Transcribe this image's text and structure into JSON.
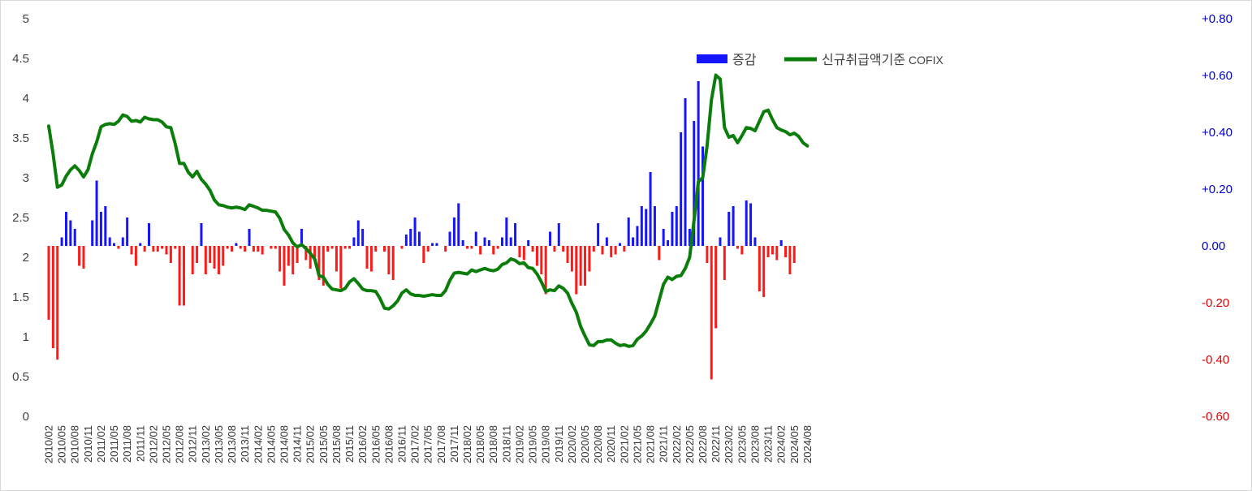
{
  "chart_data": {
    "type": "bar+line",
    "title": "",
    "colors": {
      "bar_pos": "#1515ff",
      "bar_neg": "#ff1a1a",
      "line": "#0a7d0a",
      "right_pos_tick": "#0000cc",
      "right_neg_tick": "#e00000",
      "left_tick": "#404040"
    },
    "left_axis": {
      "ylim": [
        0,
        5
      ],
      "ticks": [
        "0",
        "0.5",
        "1",
        "1.5",
        "2",
        "2.5",
        "3",
        "3.5",
        "4",
        "4.5",
        "5"
      ]
    },
    "right_axis": {
      "ylim": [
        -0.6,
        0.8
      ],
      "ticks": [
        "-0.60",
        "-0.40",
        "-0.20",
        "0.00",
        "+0.20",
        "+0.40",
        "+0.60",
        "+0.80"
      ]
    },
    "legend": {
      "bar_label": "증감",
      "line_label_kr": "신규취급액기준",
      "line_label_en": "COFIX"
    },
    "x_start": "2010/02",
    "x_labels": [
      "2010/02",
      "2010/05",
      "2010/08",
      "2010/11",
      "2011/02",
      "2011/05",
      "2011/08",
      "2011/11",
      "2012/02",
      "2012/05",
      "2012/08",
      "2012/11",
      "2013/02",
      "2013/05",
      "2013/08",
      "2013/11",
      "2014/02",
      "2014/05",
      "2014/08",
      "2014/11",
      "2015/02",
      "2015/05",
      "2015/08",
      "2015/11",
      "2016/02",
      "2016/05",
      "2016/08",
      "2016/11",
      "2017/02",
      "2017/05",
      "2017/08",
      "2017/11",
      "2018/02",
      "2018/05",
      "2018/08",
      "2018/11",
      "2019/02",
      "2019/05",
      "2019/08",
      "2019/11",
      "2020/02",
      "2020/05",
      "2020/08",
      "2020/11",
      "2021/02",
      "2021/05",
      "2021/08",
      "2021/11",
      "2022/02",
      "2022/05",
      "2022/08",
      "2022/11",
      "2023/02",
      "2023/05",
      "2023/08",
      "2023/11",
      "2024/02",
      "2024/05",
      "2024/08"
    ],
    "series": [
      {
        "name": "신규취급액기준 COFIX",
        "axis": "left",
        "type": "line",
        "values": [
          3.65,
          3.3,
          2.88,
          2.91,
          3.02,
          3.1,
          3.15,
          3.09,
          3.01,
          3.1,
          3.3,
          3.45,
          3.64,
          3.67,
          3.68,
          3.67,
          3.71,
          3.79,
          3.77,
          3.71,
          3.72,
          3.7,
          3.76,
          3.74,
          3.73,
          3.73,
          3.7,
          3.64,
          3.63,
          3.43,
          3.18,
          3.18,
          3.07,
          3.01,
          3.08,
          2.98,
          2.92,
          2.84,
          2.72,
          2.66,
          2.65,
          2.63,
          2.62,
          2.63,
          2.62,
          2.6,
          2.66,
          2.64,
          2.62,
          2.59,
          2.59,
          2.58,
          2.57,
          2.49,
          2.35,
          2.28,
          2.18,
          2.13,
          2.16,
          2.11,
          2.05,
          1.98,
          1.77,
          1.75,
          1.66,
          1.6,
          1.59,
          1.58,
          1.61,
          1.69,
          1.73,
          1.67,
          1.6,
          1.58,
          1.58,
          1.57,
          1.48,
          1.36,
          1.35,
          1.39,
          1.45,
          1.55,
          1.59,
          1.54,
          1.52,
          1.52,
          1.51,
          1.52,
          1.53,
          1.52,
          1.52,
          1.58,
          1.71,
          1.8,
          1.81,
          1.8,
          1.79,
          1.84,
          1.82,
          1.84,
          1.86,
          1.84,
          1.83,
          1.85,
          1.91,
          1.93,
          1.98,
          1.96,
          1.92,
          1.93,
          1.87,
          1.86,
          1.79,
          1.69,
          1.57,
          1.59,
          1.58,
          1.64,
          1.61,
          1.55,
          1.42,
          1.31,
          1.13,
          1.01,
          0.9,
          0.89,
          0.94,
          0.94,
          0.96,
          0.96,
          0.92,
          0.89,
          0.9,
          0.88,
          0.89,
          0.97,
          1.01,
          1.07,
          1.16,
          1.26,
          1.46,
          1.66,
          1.75,
          1.72,
          1.76,
          1.77,
          1.86,
          2.0,
          2.46,
          2.95,
          3.0,
          3.4,
          3.98,
          4.29,
          4.24,
          3.63,
          3.51,
          3.53,
          3.44,
          3.53,
          3.63,
          3.62,
          3.59,
          3.71,
          3.83,
          3.85,
          3.73,
          3.63,
          3.6,
          3.58,
          3.54,
          3.56,
          3.52,
          3.44,
          3.4
        ]
      },
      {
        "name": "증감",
        "axis": "right",
        "type": "bar",
        "values": [
          -0.26,
          -0.36,
          -0.4,
          0.03,
          0.12,
          0.09,
          0.06,
          -0.07,
          -0.08,
          0.0,
          0.09,
          0.23,
          0.12,
          0.14,
          0.03,
          0.01,
          -0.01,
          0.03,
          0.1,
          -0.03,
          -0.07,
          0.01,
          -0.02,
          0.08,
          -0.02,
          -0.02,
          -0.01,
          -0.03,
          -0.06,
          -0.01,
          -0.21,
          -0.21,
          0.0,
          -0.1,
          -0.06,
          0.08,
          -0.1,
          -0.06,
          -0.08,
          -0.1,
          -0.07,
          -0.01,
          -0.02,
          0.01,
          -0.01,
          -0.02,
          0.06,
          -0.02,
          -0.02,
          -0.03,
          0.0,
          -0.01,
          -0.01,
          -0.09,
          -0.14,
          -0.07,
          -0.1,
          -0.06,
          0.06,
          -0.05,
          -0.08,
          -0.05,
          -0.12,
          -0.14,
          -0.02,
          -0.01,
          -0.09,
          -0.15,
          -0.01,
          -0.01,
          0.03,
          0.09,
          0.06,
          -0.08,
          -0.09,
          -0.02,
          0.0,
          -0.02,
          -0.1,
          -0.12,
          0.0,
          -0.01,
          0.04,
          0.06,
          0.1,
          0.05,
          -0.06,
          -0.02,
          0.01,
          0.01,
          0.0,
          -0.02,
          0.05,
          0.1,
          0.15,
          0.02,
          -0.01,
          -0.01,
          0.05,
          -0.03,
          0.03,
          0.02,
          -0.03,
          -0.01,
          0.03,
          0.1,
          0.03,
          0.08,
          -0.04,
          -0.05,
          0.02,
          -0.02,
          -0.07,
          -0.1,
          -0.17,
          0.05,
          -0.02,
          0.08,
          -0.02,
          -0.06,
          -0.09,
          -0.17,
          -0.14,
          -0.14,
          -0.09,
          -0.02,
          0.08,
          -0.03,
          0.03,
          -0.04,
          -0.03,
          0.01,
          -0.02,
          0.1,
          0.03,
          0.07,
          0.14,
          0.13,
          0.26,
          0.14,
          -0.05,
          0.06,
          0.02,
          0.12,
          0.14,
          0.4,
          0.52,
          0.06,
          0.44,
          0.58,
          0.35,
          -0.06,
          -0.47,
          -0.29,
          0.03,
          -0.12,
          0.12,
          0.14,
          -0.01,
          -0.03,
          0.16,
          0.15,
          0.03,
          -0.16,
          -0.18,
          -0.04,
          -0.03,
          -0.05,
          0.02,
          -0.04,
          -0.1,
          -0.06
        ]
      }
    ]
  }
}
